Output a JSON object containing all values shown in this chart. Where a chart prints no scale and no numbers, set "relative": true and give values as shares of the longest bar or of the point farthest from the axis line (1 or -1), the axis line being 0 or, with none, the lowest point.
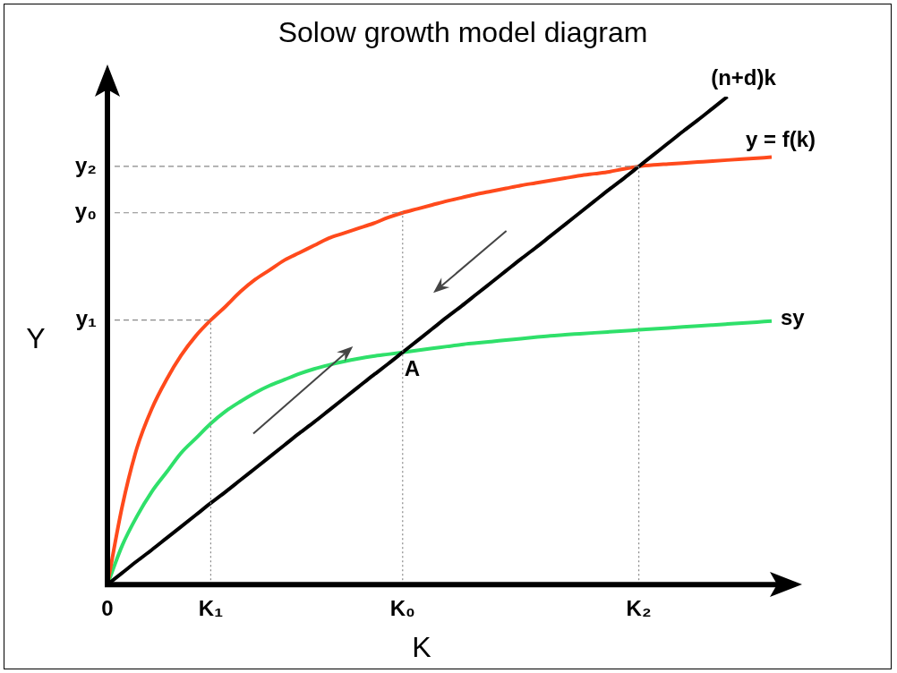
{
  "chart_data": {
    "type": "line",
    "title": "Solow growth model diagram",
    "xlabel": "K",
    "ylabel": "Y",
    "relative": true,
    "categories": [
      "0",
      null,
      null,
      null,
      null,
      null,
      null,
      "K₁",
      null,
      null,
      null,
      null,
      null,
      null,
      null,
      null,
      null,
      null,
      null,
      null,
      "K₀",
      null,
      null,
      null,
      null,
      null,
      null,
      null,
      null,
      null,
      null,
      null,
      null,
      null,
      null,
      null,
      "K₂",
      null,
      null,
      null,
      null,
      null,
      null,
      null,
      null,
      null
    ],
    "series": [
      {
        "name": "(n+d)k",
        "color": "#000000",
        "values": [
          0,
          0.024,
          0.048,
          0.071,
          0.095,
          0.119,
          0.143,
          0.167,
          0.19,
          0.214,
          0.238,
          0.262,
          0.286,
          0.31,
          0.333,
          0.357,
          0.381,
          0.405,
          0.429,
          0.452,
          0.476,
          0.5,
          0.524,
          0.548,
          0.571,
          0.595,
          0.619,
          0.643,
          0.667,
          0.69,
          0.714,
          0.738,
          0.762,
          0.786,
          0.81,
          0.833,
          0.857,
          0.881,
          0.905,
          0.929,
          0.952,
          0.976,
          1,
          null,
          null,
          null
        ]
      },
      {
        "name": "y = f(k)",
        "color": "#ff4a1c",
        "values": [
          0,
          0.16,
          0.28,
          0.36,
          0.42,
          0.47,
          0.51,
          0.542,
          0.57,
          0.6,
          0.625,
          0.645,
          0.665,
          0.68,
          0.695,
          0.71,
          0.72,
          0.73,
          0.74,
          0.752,
          0.762,
          0.77,
          0.778,
          0.786,
          0.793,
          0.8,
          0.806,
          0.812,
          0.818,
          0.823,
          0.828,
          0.833,
          0.838,
          0.842,
          0.846,
          0.852,
          0.857,
          0.86,
          0.862,
          0.864,
          0.866,
          0.868,
          0.87,
          0.872,
          0.874,
          0.876
        ]
      },
      {
        "name": "sy",
        "color": "#2fe06a",
        "values": [
          0,
          0.08,
          0.14,
          0.19,
          0.23,
          0.27,
          0.3,
          0.33,
          0.355,
          0.375,
          0.393,
          0.408,
          0.42,
          0.432,
          0.442,
          0.45,
          0.457,
          0.463,
          0.468,
          0.472,
          0.476,
          0.48,
          0.484,
          0.488,
          0.492,
          0.495,
          0.498,
          0.501,
          0.504,
          0.507,
          0.51,
          0.512,
          0.514,
          0.516,
          0.518,
          0.52,
          0.522,
          0.524,
          0.526,
          0.528,
          0.53,
          0.532,
          0.534,
          0.536,
          0.538,
          0.54
        ]
      }
    ],
    "ref_lines": [
      {
        "axis": "y",
        "value": 0.857,
        "label": "y₂",
        "color": "#888888",
        "line_style": "dashed"
      },
      {
        "axis": "y",
        "value": 0.762,
        "label": "y₀",
        "color": "#888888",
        "line_style": "dashed"
      },
      {
        "axis": "y",
        "value": 0.542,
        "label": "y₁",
        "color": "#888888",
        "line_style": "dashed"
      },
      {
        "axis": "x",
        "value": "K₁",
        "color": "#888888",
        "line_style": "dotted"
      },
      {
        "axis": "x",
        "value": "K₀",
        "color": "#888888",
        "line_style": "dotted"
      },
      {
        "axis": "x",
        "value": "K₂",
        "color": "#888888",
        "line_style": "dotted"
      }
    ],
    "annotations": [
      {
        "text": "A",
        "x": "K₀",
        "y": 0.476
      }
    ],
    "line_style": "solid",
    "grid": false,
    "legend": false
  }
}
